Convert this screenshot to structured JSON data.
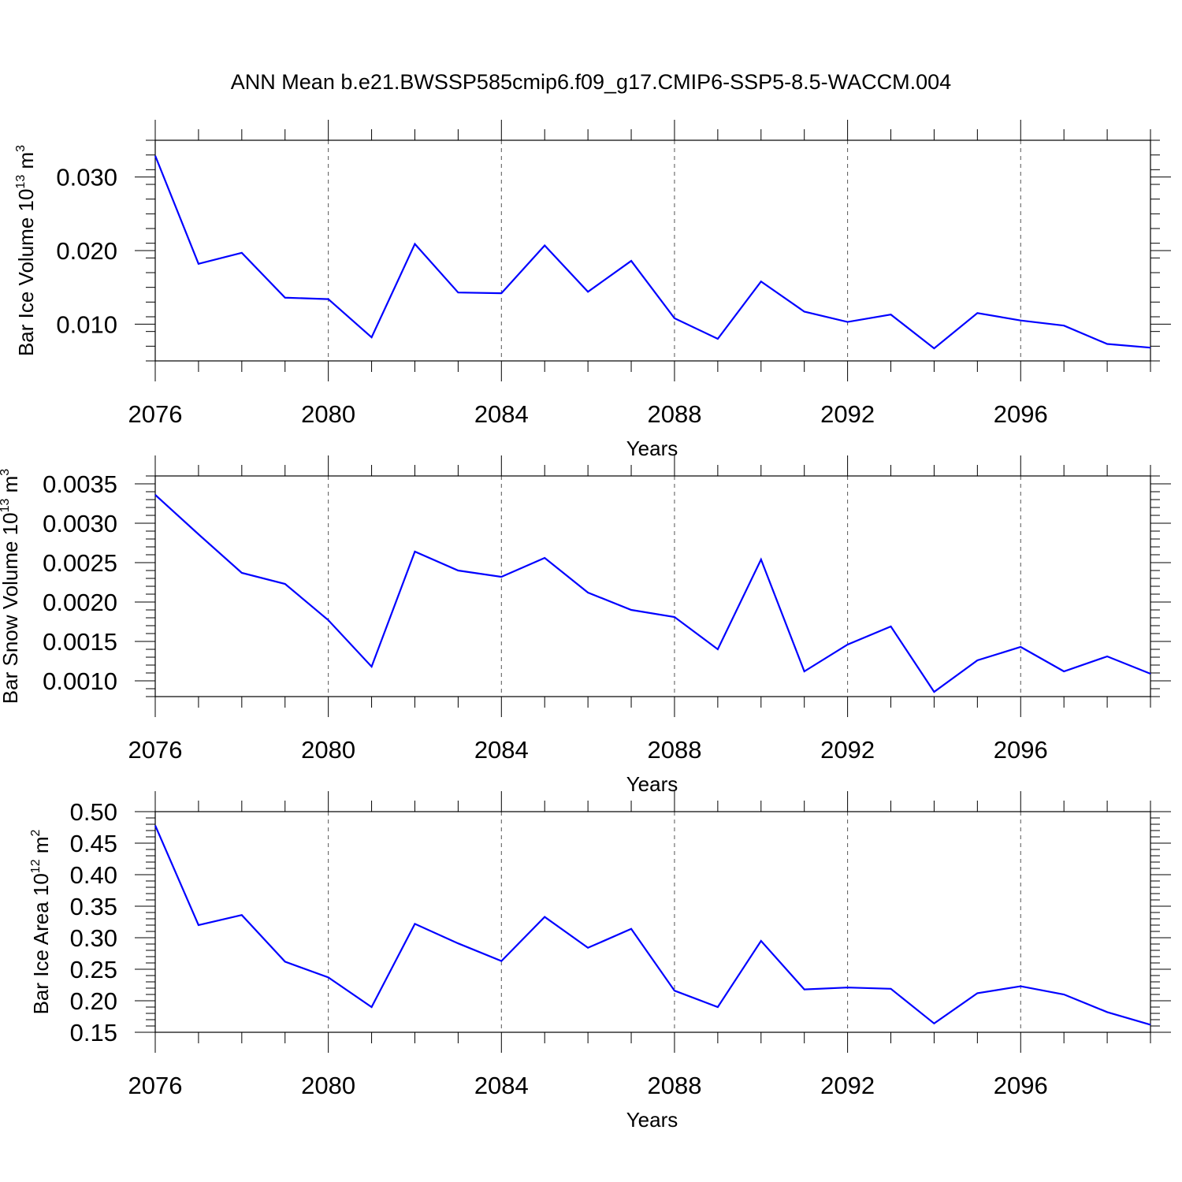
{
  "title": "ANN Mean b.e21.BWSSP585cmip6.f09_g17.CMIP6-SSP5-8.5-WACCM.004",
  "colors": {
    "series": "#0000ff",
    "axis": "#000000",
    "grid": "#555555"
  },
  "chart_data": [
    {
      "type": "line",
      "xlabel": "Years",
      "ylabel": {
        "text": "Bar Ice Volume 10",
        "exponent": "13",
        "unit": " m",
        "unit_exponent": "3"
      },
      "xlim": [
        2076,
        2099
      ],
      "ylim": [
        0.005,
        0.035
      ],
      "x_ticks": [
        2076,
        2080,
        2084,
        2088,
        2092,
        2096
      ],
      "x_tick_labels": [
        "2076",
        "2080",
        "2084",
        "2088",
        "2092",
        "2096"
      ],
      "y_ticks": [
        0.01,
        0.02,
        0.03
      ],
      "y_tick_labels": [
        "0.010",
        "0.020",
        "0.030"
      ],
      "y_minor_step": 0.002,
      "x": [
        2076,
        2077,
        2078,
        2079,
        2080,
        2081,
        2082,
        2083,
        2084,
        2085,
        2086,
        2087,
        2088,
        2089,
        2090,
        2091,
        2092,
        2093,
        2094,
        2095,
        2096,
        2097,
        2098,
        2099
      ],
      "series": [
        {
          "name": "Bar Ice Volume",
          "values": [
            0.0329,
            0.0182,
            0.0197,
            0.0136,
            0.0134,
            0.0082,
            0.0209,
            0.0143,
            0.0142,
            0.0207,
            0.0144,
            0.0186,
            0.0108,
            0.008,
            0.0158,
            0.0117,
            0.0103,
            0.0113,
            0.0067,
            0.0115,
            0.0105,
            0.0098,
            0.0073,
            0.0068
          ]
        }
      ]
    },
    {
      "type": "line",
      "xlabel": "Years",
      "ylabel": {
        "text": "Bar Snow Volume 10",
        "exponent": "13",
        "unit": " m",
        "unit_exponent": "3"
      },
      "xlim": [
        2076,
        2099
      ],
      "ylim": [
        0.0008,
        0.0036
      ],
      "x_ticks": [
        2076,
        2080,
        2084,
        2088,
        2092,
        2096
      ],
      "x_tick_labels": [
        "2076",
        "2080",
        "2084",
        "2088",
        "2092",
        "2096"
      ],
      "y_ticks": [
        0.001,
        0.0015,
        0.002,
        0.0025,
        0.003,
        0.0035
      ],
      "y_tick_labels": [
        "0.0010",
        "0.0015",
        "0.0020",
        "0.0025",
        "0.0030",
        "0.0035"
      ],
      "y_minor_step": 0.0001,
      "x": [
        2076,
        2077,
        2078,
        2079,
        2080,
        2081,
        2082,
        2083,
        2084,
        2085,
        2086,
        2087,
        2088,
        2089,
        2090,
        2091,
        2092,
        2093,
        2094,
        2095,
        2096,
        2097,
        2098,
        2099
      ],
      "series": [
        {
          "name": "Bar Snow Volume",
          "values": [
            0.00336,
            0.00286,
            0.00237,
            0.00223,
            0.00177,
            0.00118,
            0.00264,
            0.0024,
            0.00232,
            0.00256,
            0.00212,
            0.0019,
            0.00181,
            0.0014,
            0.00254,
            0.00112,
            0.00146,
            0.00169,
            0.00086,
            0.00126,
            0.00143,
            0.00112,
            0.00131,
            0.00109
          ]
        }
      ]
    },
    {
      "type": "line",
      "xlabel": "Years",
      "ylabel": {
        "text": "Bar Ice Area 10",
        "exponent": "12",
        "unit": " m",
        "unit_exponent": "2"
      },
      "xlim": [
        2076,
        2099
      ],
      "ylim": [
        0.15,
        0.5
      ],
      "x_ticks": [
        2076,
        2080,
        2084,
        2088,
        2092,
        2096
      ],
      "x_tick_labels": [
        "2076",
        "2080",
        "2084",
        "2088",
        "2092",
        "2096"
      ],
      "y_ticks": [
        0.15,
        0.2,
        0.25,
        0.3,
        0.35,
        0.4,
        0.45,
        0.5
      ],
      "y_tick_labels": [
        "0.15",
        "0.20",
        "0.25",
        "0.30",
        "0.35",
        "0.40",
        "0.45",
        "0.50"
      ],
      "y_minor_step": 0.01,
      "x": [
        2076,
        2077,
        2078,
        2079,
        2080,
        2081,
        2082,
        2083,
        2084,
        2085,
        2086,
        2087,
        2088,
        2089,
        2090,
        2091,
        2092,
        2093,
        2094,
        2095,
        2096,
        2097,
        2098,
        2099
      ],
      "series": [
        {
          "name": "Bar Ice Area",
          "values": [
            0.478,
            0.32,
            0.336,
            0.262,
            0.237,
            0.19,
            0.322,
            0.291,
            0.263,
            0.333,
            0.284,
            0.314,
            0.216,
            0.19,
            0.295,
            0.218,
            0.221,
            0.219,
            0.164,
            0.212,
            0.223,
            0.21,
            0.182,
            0.162
          ]
        }
      ]
    }
  ]
}
